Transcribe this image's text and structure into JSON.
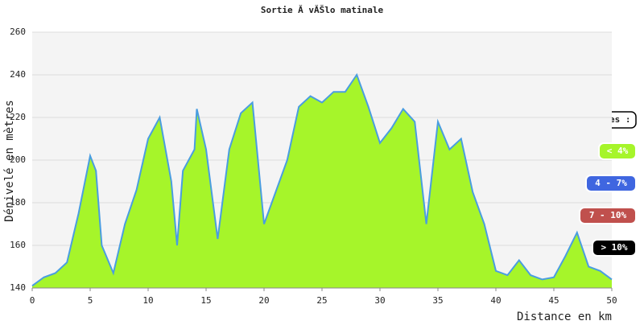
{
  "chart_data": {
    "type": "area",
    "title": "Sortie Ă  vĂŠlo matinale",
    "x_label": "Distance en km",
    "y_label": "Dénivelé en mètres",
    "x": [
      0,
      1,
      2,
      3,
      4,
      5,
      5.5,
      6,
      7,
      8,
      9,
      10,
      11,
      12,
      12.5,
      13,
      14,
      14.2,
      15,
      16,
      17,
      18,
      19,
      20,
      21,
      22,
      23,
      24,
      25,
      26,
      27,
      28,
      29,
      30,
      31,
      32,
      33,
      34,
      35,
      36,
      37,
      38,
      39,
      40,
      41,
      42,
      43,
      44,
      45,
      46,
      47,
      48,
      49,
      50
    ],
    "values": [
      141,
      145,
      147,
      152,
      175,
      202,
      195,
      160,
      147,
      170,
      186,
      210,
      220,
      190,
      160,
      195,
      205,
      224,
      205,
      163,
      205,
      222,
      227,
      170,
      185,
      200,
      225,
      230,
      227,
      232,
      232,
      240,
      225,
      208,
      215,
      224,
      218,
      170,
      218,
      205,
      210,
      185,
      170,
      148,
      146,
      153,
      146,
      144,
      145,
      155,
      166,
      150,
      148,
      144
    ],
    "color": "#a6f52a",
    "line_color": "#4a9de0",
    "xlim": [
      0,
      50
    ],
    "xticks": [
      0,
      5,
      10,
      15,
      20,
      25,
      30,
      35,
      40,
      45,
      50
    ],
    "ylim": [
      140,
      260
    ],
    "yticks": [
      140,
      160,
      180,
      200,
      220,
      240,
      260
    ],
    "grid": true,
    "legend_title": "Pentes :",
    "slope_classes": [
      {
        "label": "< 4%",
        "color": "#a6f52a"
      },
      {
        "label": "4 - 7%",
        "color": "#3f66e0"
      },
      {
        "label": "7 - 10%",
        "color": "#c0504d"
      },
      {
        "label": "> 10%",
        "color": "#000000"
      }
    ]
  }
}
